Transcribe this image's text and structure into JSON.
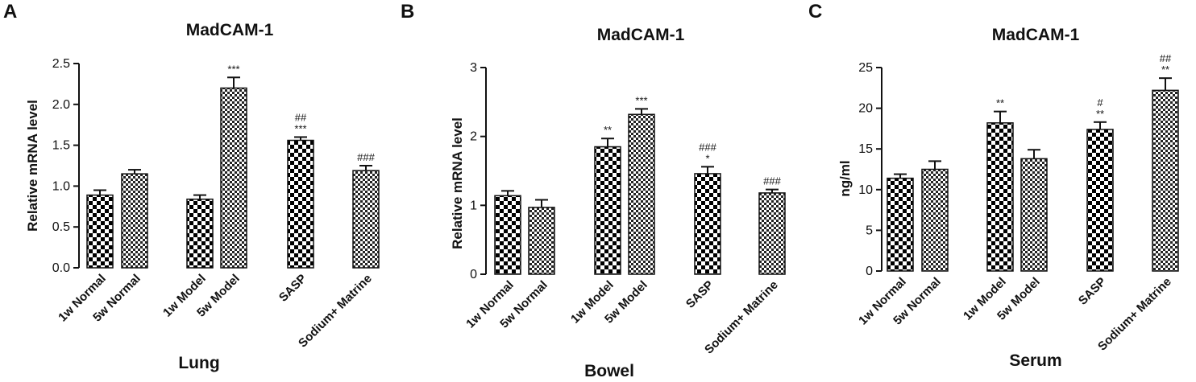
{
  "chart_data": [
    {
      "type": "bar",
      "panel": "A",
      "title": "MadCAM-1",
      "ylabel": "Relative mRNA level",
      "xlabel": "Lung",
      "ylim": [
        0,
        2.5
      ],
      "yticks": [
        "0.0",
        "0.5",
        "1.0",
        "1.5",
        "2.0",
        "2.5"
      ],
      "categories": [
        "1w Normal",
        "5w Normal",
        "1w Model",
        "5w Model",
        "SASP",
        "Sodium+ Matrine"
      ],
      "values": [
        0.89,
        1.15,
        0.84,
        2.2,
        1.56,
        1.19
      ],
      "errors": [
        0.06,
        0.05,
        0.05,
        0.13,
        0.04,
        0.06
      ],
      "annotations": [
        [],
        [],
        [],
        [
          "***"
        ],
        [
          "##",
          "***"
        ],
        [
          "###"
        ]
      ]
    },
    {
      "type": "bar",
      "panel": "B",
      "title": "MadCAM-1",
      "ylabel": "Relative mRNA level",
      "xlabel": "Bowel",
      "ylim": [
        0,
        3
      ],
      "yticks": [
        "0",
        "1",
        "2",
        "3"
      ],
      "categories": [
        "1w Normal",
        "5w Normal",
        "1w Model",
        "5w Model",
        "SASP",
        "Sodium+ Matrine"
      ],
      "values": [
        1.14,
        0.97,
        1.85,
        2.32,
        1.46,
        1.18
      ],
      "errors": [
        0.07,
        0.11,
        0.12,
        0.08,
        0.1,
        0.05
      ],
      "annotations": [
        [],
        [],
        [
          "**"
        ],
        [
          "***"
        ],
        [
          "###",
          "*"
        ],
        [
          "###"
        ]
      ]
    },
    {
      "type": "bar",
      "panel": "C",
      "title": "MadCAM-1",
      "ylabel": "ng/ml",
      "xlabel": "Serum",
      "ylim": [
        0,
        25
      ],
      "yticks": [
        "0",
        "5",
        "10",
        "15",
        "20",
        "25"
      ],
      "categories": [
        "1w Normal",
        "5w Normal",
        "1w Model",
        "5w Model",
        "SASP",
        "Sodium+ Matrine"
      ],
      "values": [
        11.4,
        12.5,
        18.2,
        13.8,
        17.4,
        22.2
      ],
      "errors": [
        0.5,
        1.0,
        1.4,
        1.1,
        0.9,
        1.5
      ],
      "annotations": [
        [],
        [],
        [
          "**"
        ],
        [],
        [
          "#",
          "**"
        ],
        [
          "##",
          "**"
        ]
      ]
    }
  ]
}
